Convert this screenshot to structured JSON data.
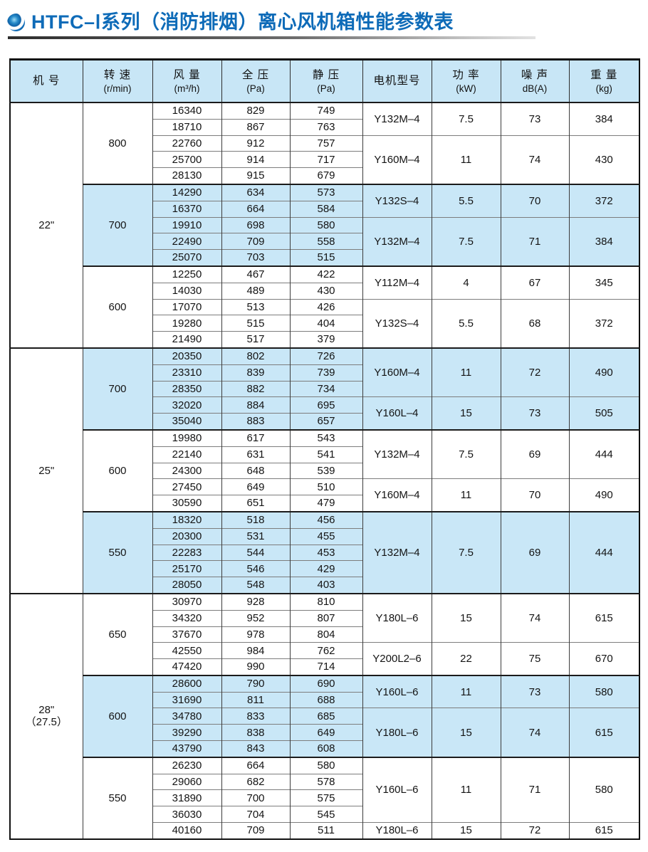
{
  "page": {
    "title": "HTFC–Ⅰ系列（消防排烟）离心风机箱性能参数表",
    "accent_color": "#0e6bb8",
    "shade_color": "#c9e7f7"
  },
  "table": {
    "headers": [
      {
        "line1": "机 号",
        "line2": ""
      },
      {
        "line1": "转 速",
        "line2": "(r/min)"
      },
      {
        "line1": "风 量",
        "line2": "(m³/h)"
      },
      {
        "line1": "全 压",
        "line2": "(Pa)"
      },
      {
        "line1": "静 压",
        "line2": "(Pa)"
      },
      {
        "line1": "电机型号",
        "line2": ""
      },
      {
        "line1": "功 率",
        "line2": "(kW)"
      },
      {
        "line1": "噪 声",
        "line2": "dB(A)"
      },
      {
        "line1": "重 量",
        "line2": "(kg)"
      }
    ],
    "groups": [
      {
        "size_lines": [
          "22\""
        ],
        "sections": [
          {
            "speed": "800",
            "rows": [
              {
                "flow": "16340",
                "total": "829",
                "static": "749"
              },
              {
                "flow": "18710",
                "total": "867",
                "static": "763"
              },
              {
                "flow": "22760",
                "total": "912",
                "static": "757"
              },
              {
                "flow": "25700",
                "total": "914",
                "static": "717"
              },
              {
                "flow": "28130",
                "total": "915",
                "static": "679"
              }
            ],
            "motors": [
              {
                "rows": 2,
                "model": "Y132M–4",
                "power": "7.5",
                "noise": "73",
                "weight": "384"
              },
              {
                "rows": 3,
                "model": "Y160M–4",
                "power": "11",
                "noise": "74",
                "weight": "430"
              }
            ]
          },
          {
            "speed": "700",
            "rows": [
              {
                "flow": "14290",
                "total": "634",
                "static": "573"
              },
              {
                "flow": "16370",
                "total": "664",
                "static": "584"
              },
              {
                "flow": "19910",
                "total": "698",
                "static": "580"
              },
              {
                "flow": "22490",
                "total": "709",
                "static": "558"
              },
              {
                "flow": "25070",
                "total": "703",
                "static": "515"
              }
            ],
            "motors": [
              {
                "rows": 2,
                "model": "Y132S–4",
                "power": "5.5",
                "noise": "70",
                "weight": "372"
              },
              {
                "rows": 3,
                "model": "Y132M–4",
                "power": "7.5",
                "noise": "71",
                "weight": "384"
              }
            ]
          },
          {
            "speed": "600",
            "rows": [
              {
                "flow": "12250",
                "total": "467",
                "static": "422"
              },
              {
                "flow": "14030",
                "total": "489",
                "static": "430"
              },
              {
                "flow": "17070",
                "total": "513",
                "static": "426"
              },
              {
                "flow": "19280",
                "total": "515",
                "static": "404"
              },
              {
                "flow": "21490",
                "total": "517",
                "static": "379"
              }
            ],
            "motors": [
              {
                "rows": 2,
                "model": "Y112M–4",
                "power": "4",
                "noise": "67",
                "weight": "345"
              },
              {
                "rows": 3,
                "model": "Y132S–4",
                "power": "5.5",
                "noise": "68",
                "weight": "372"
              }
            ]
          }
        ]
      },
      {
        "size_lines": [
          "25\""
        ],
        "sections": [
          {
            "speed": "700",
            "rows": [
              {
                "flow": "20350",
                "total": "802",
                "static": "726"
              },
              {
                "flow": "23310",
                "total": "839",
                "static": "739"
              },
              {
                "flow": "28350",
                "total": "882",
                "static": "734"
              },
              {
                "flow": "32020",
                "total": "884",
                "static": "695"
              },
              {
                "flow": "35040",
                "total": "883",
                "static": "657"
              }
            ],
            "motors": [
              {
                "rows": 3,
                "model": "Y160M–4",
                "power": "11",
                "noise": "72",
                "weight": "490"
              },
              {
                "rows": 2,
                "model": "Y160L–4",
                "power": "15",
                "noise": "73",
                "weight": "505"
              }
            ]
          },
          {
            "speed": "600",
            "rows": [
              {
                "flow": "19980",
                "total": "617",
                "static": "543"
              },
              {
                "flow": "22140",
                "total": "631",
                "static": "541"
              },
              {
                "flow": "24300",
                "total": "648",
                "static": "539"
              },
              {
                "flow": "27450",
                "total": "649",
                "static": "510"
              },
              {
                "flow": "30590",
                "total": "651",
                "static": "479"
              }
            ],
            "motors": [
              {
                "rows": 3,
                "model": "Y132M–4",
                "power": "7.5",
                "noise": "69",
                "weight": "444"
              },
              {
                "rows": 2,
                "model": "Y160M–4",
                "power": "11",
                "noise": "70",
                "weight": "490"
              }
            ]
          },
          {
            "speed": "550",
            "rows": [
              {
                "flow": "18320",
                "total": "518",
                "static": "456"
              },
              {
                "flow": "20300",
                "total": "531",
                "static": "455"
              },
              {
                "flow": "22283",
                "total": "544",
                "static": "453"
              },
              {
                "flow": "25170",
                "total": "546",
                "static": "429"
              },
              {
                "flow": "28050",
                "total": "548",
                "static": "403"
              }
            ],
            "motors": [
              {
                "rows": 5,
                "model": "Y132M–4",
                "power": "7.5",
                "noise": "69",
                "weight": "444"
              }
            ]
          }
        ]
      },
      {
        "size_lines": [
          "28\"",
          "（27.5）"
        ],
        "sections": [
          {
            "speed": "650",
            "rows": [
              {
                "flow": "30970",
                "total": "928",
                "static": "810"
              },
              {
                "flow": "34320",
                "total": "952",
                "static": "807"
              },
              {
                "flow": "37670",
                "total": "978",
                "static": "804"
              },
              {
                "flow": "42550",
                "total": "984",
                "static": "762"
              },
              {
                "flow": "47420",
                "total": "990",
                "static": "714"
              }
            ],
            "motors": [
              {
                "rows": 3,
                "model": "Y180L–6",
                "power": "15",
                "noise": "74",
                "weight": "615"
              },
              {
                "rows": 2,
                "model": "Y200L2–6",
                "power": "22",
                "noise": "75",
                "weight": "670"
              }
            ]
          },
          {
            "speed": "600",
            "rows": [
              {
                "flow": "28600",
                "total": "790",
                "static": "690"
              },
              {
                "flow": "31690",
                "total": "811",
                "static": "688"
              },
              {
                "flow": "34780",
                "total": "833",
                "static": "685"
              },
              {
                "flow": "39290",
                "total": "838",
                "static": "649"
              },
              {
                "flow": "43790",
                "total": "843",
                "static": "608"
              }
            ],
            "motors": [
              {
                "rows": 2,
                "model": "Y160L–6",
                "power": "11",
                "noise": "73",
                "weight": "580"
              },
              {
                "rows": 3,
                "model": "Y180L–6",
                "power": "15",
                "noise": "74",
                "weight": "615"
              }
            ]
          },
          {
            "speed": "550",
            "rows": [
              {
                "flow": "26230",
                "total": "664",
                "static": "580"
              },
              {
                "flow": "29060",
                "total": "682",
                "static": "578"
              },
              {
                "flow": "31890",
                "total": "700",
                "static": "575"
              },
              {
                "flow": "36030",
                "total": "704",
                "static": "545"
              },
              {
                "flow": "40160",
                "total": "709",
                "static": "511"
              }
            ],
            "motors": [
              {
                "rows": 4,
                "model": "Y160L–6",
                "power": "11",
                "noise": "71",
                "weight": "580"
              },
              {
                "rows": 1,
                "model": "Y180L–6",
                "power": "15",
                "noise": "72",
                "weight": "615"
              }
            ]
          }
        ]
      }
    ]
  }
}
